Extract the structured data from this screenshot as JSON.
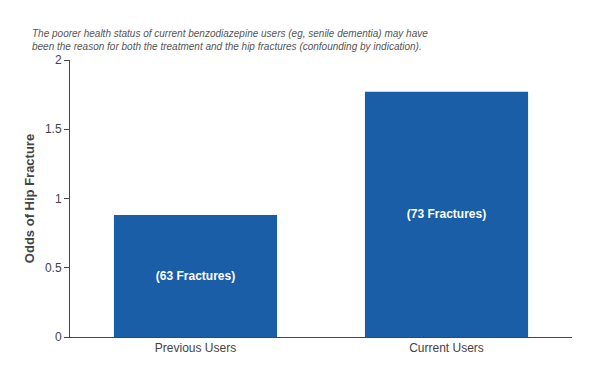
{
  "chart_data": {
    "type": "bar",
    "categories": [
      "Previous Users",
      "Current Users"
    ],
    "values": [
      0.88,
      1.77
    ],
    "color": "#1a5ea8",
    "bar_labels": [
      "(63 Fractures)",
      "(73 Fractures)"
    ],
    "ylabel": "Odds of Hip Fracture",
    "ylim": [
      0,
      2
    ],
    "yticks": [
      0,
      0.5,
      1,
      1.5,
      2
    ],
    "annotations": [
      "The poorer health status of current benzodiazepine users (eg, senile dementia) may have",
      "been the reason for both the treatment and the hip fractures (confounding by indication)."
    ],
    "grid": false
  }
}
